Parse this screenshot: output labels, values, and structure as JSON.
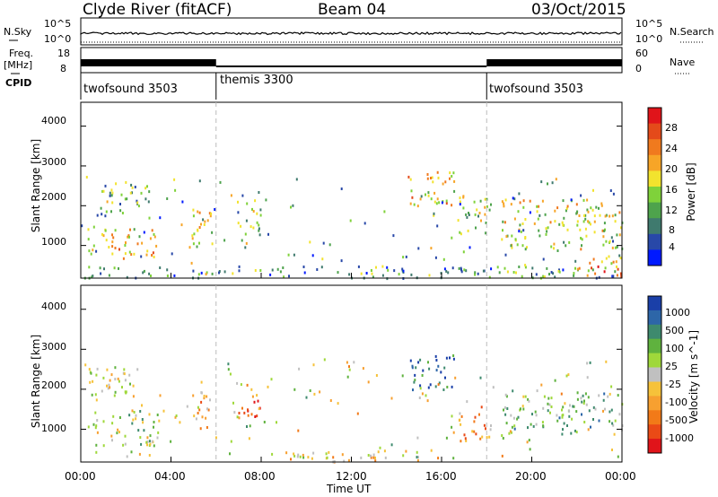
{
  "header": {
    "title": "Clyde River (fitACF)",
    "beam": "Beam 04",
    "date": "03/Oct/2015"
  },
  "strip": {
    "nsky_label": "N.Sky",
    "nsky_ticks": [
      "10^5",
      "10^0"
    ],
    "nsearch_label": "N.Search",
    "nsearch_ticks": [
      "10^5",
      "10^0"
    ],
    "freq_label": "Freq.",
    "freq_unit": "[MHz]",
    "freq_ticks": [
      "18",
      "8"
    ],
    "nave_label": "Nave",
    "nave_ticks": [
      "60",
      "0"
    ],
    "cpid_label": "CPID",
    "cpid_segments": [
      {
        "name": "twofsound 3503",
        "start_hour": 0,
        "end_hour": 6
      },
      {
        "name": "themis 3300",
        "start_hour": 6,
        "end_hour": 18
      },
      {
        "name": "twofsound 3503",
        "start_hour": 18,
        "end_hour": 24
      }
    ]
  },
  "axes": {
    "xlabel": "Time UT",
    "ylabel": "Slant Range [km]",
    "x_ticks": [
      "00:00",
      "04:00",
      "08:00",
      "12:00",
      "16:00",
      "20:00",
      "00:00"
    ],
    "y_ticks": [
      "1000",
      "2000",
      "3000",
      "4000"
    ]
  },
  "chart_data": [
    {
      "type": "heatmap",
      "panel": "power",
      "x_unit": "hour UT",
      "xlim": [
        0,
        24
      ],
      "ylim": [
        180,
        4600
      ],
      "colorbar": {
        "label": "Power [dB]",
        "ticks": [
          "4",
          "8",
          "12",
          "16",
          "20",
          "24",
          "28"
        ],
        "range": [
          0,
          30
        ],
        "colors": [
          "#0019ff",
          "#2848a8",
          "#3f7a6e",
          "#4ea34c",
          "#7fd23a",
          "#f2e32e",
          "#f7a527",
          "#f07a1e",
          "#e44a1a",
          "#e0141a"
        ]
      },
      "regions": [
        {
          "x": [
            0.3,
            3.5
          ],
          "y": [
            700,
            1500
          ],
          "level": 18
        },
        {
          "x": [
            0.8,
            3.1
          ],
          "y": [
            1700,
            2600
          ],
          "level": 11
        },
        {
          "x": [
            4.8,
            5.8
          ],
          "y": [
            1000,
            2000
          ],
          "level": 17
        },
        {
          "x": [
            6.8,
            8.0
          ],
          "y": [
            1300,
            2200
          ],
          "level": 12
        },
        {
          "x": [
            14.5,
            16.6
          ],
          "y": [
            2000,
            2900
          ],
          "level": 19
        },
        {
          "x": [
            16.5,
            18.2
          ],
          "y": [
            1300,
            2400
          ],
          "level": 14
        },
        {
          "x": [
            18.6,
            24.0
          ],
          "y": [
            900,
            2200
          ],
          "level": 16
        },
        {
          "x": [
            0.0,
            24.0
          ],
          "y": [
            200,
            500
          ],
          "level": 9
        },
        {
          "x": [
            22.0,
            24.0
          ],
          "y": [
            200,
            800
          ],
          "level": 22
        }
      ]
    },
    {
      "type": "heatmap",
      "panel": "velocity",
      "x_unit": "hour UT",
      "xlim": [
        0,
        24
      ],
      "ylim": [
        180,
        4600
      ],
      "colorbar": {
        "label": "Velocity [m s^-1]",
        "ticks": [
          "1000",
          "500",
          "100",
          "25",
          "-25",
          "-100",
          "-500",
          "-1000"
        ],
        "range": [
          -1200,
          1200
        ],
        "colors": [
          "#1a3fa8",
          "#2d66a8",
          "#3e8a6e",
          "#5fb23e",
          "#9fd83a",
          "#c0c0c0",
          "#f6c23a",
          "#f7a030",
          "#f27a18",
          "#ea4a16",
          "#e0141a"
        ]
      },
      "regions": [
        {
          "x": [
            0.3,
            3.5
          ],
          "y": [
            600,
            1500
          ],
          "level": 120
        },
        {
          "x": [
            0.3,
            2.5
          ],
          "y": [
            1700,
            2600
          ],
          "level": 0
        },
        {
          "x": [
            4.8,
            5.8
          ],
          "y": [
            1000,
            2000
          ],
          "level": -300
        },
        {
          "x": [
            6.8,
            8.0
          ],
          "y": [
            1300,
            2200
          ],
          "level": -600
        },
        {
          "x": [
            14.5,
            16.6
          ],
          "y": [
            2000,
            2900
          ],
          "level": 900
        },
        {
          "x": [
            16.5,
            18.2
          ],
          "y": [
            700,
            1600
          ],
          "level": -500
        },
        {
          "x": [
            18.6,
            24.0
          ],
          "y": [
            900,
            2000
          ],
          "level": 300
        },
        {
          "x": [
            9.0,
            16.0
          ],
          "y": [
            200,
            500
          ],
          "level": -150
        }
      ]
    }
  ]
}
